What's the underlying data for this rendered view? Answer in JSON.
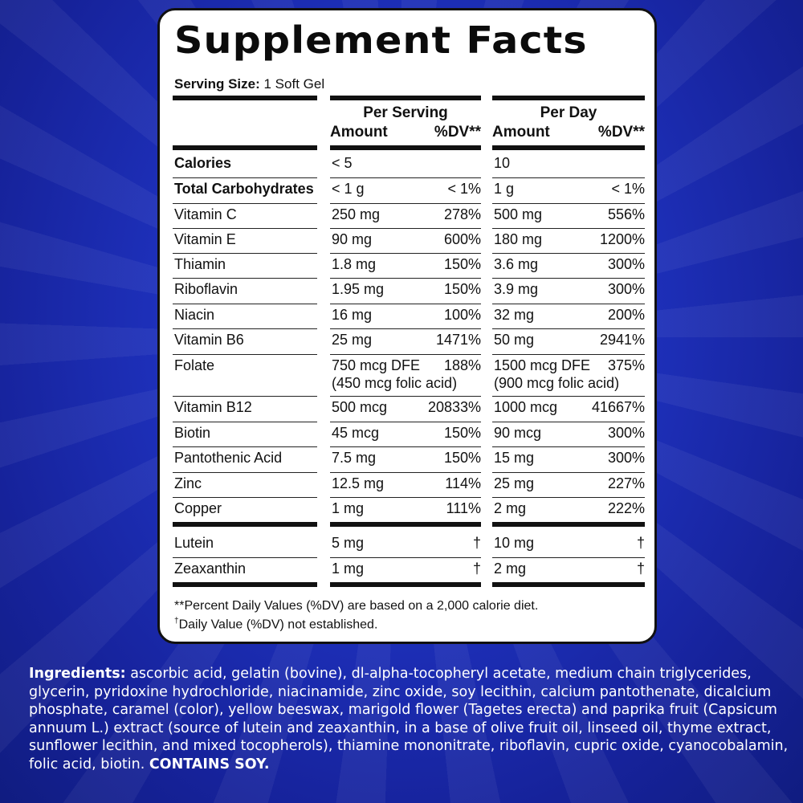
{
  "panel": {
    "title": "Supplement Facts",
    "serving_label": "Serving Size:",
    "serving_value": "1 Soft Gel",
    "per_serving_header": "Per Serving",
    "per_day_header": "Per Day",
    "amount_header": "Amount",
    "dv_header": "%DV**",
    "rows": [
      {
        "name": "Calories",
        "ps_amount": "< 5",
        "ps_dv": "",
        "pd_amount": "10",
        "pd_dv": "",
        "bold": true
      },
      {
        "name": "Total Carbohydrates",
        "ps_amount": "< 1 g",
        "ps_dv": "< 1%",
        "pd_amount": "1 g",
        "pd_dv": "< 1%",
        "bold": true
      },
      {
        "name": "Vitamin C",
        "ps_amount": "250 mg",
        "ps_dv": "278%",
        "pd_amount": "500 mg",
        "pd_dv": "556%"
      },
      {
        "name": "Vitamin E",
        "ps_amount": "90 mg",
        "ps_dv": "600%",
        "pd_amount": "180 mg",
        "pd_dv": "1200%"
      },
      {
        "name": "Thiamin",
        "ps_amount": "1.8 mg",
        "ps_dv": "150%",
        "pd_amount": "3.6 mg",
        "pd_dv": "300%"
      },
      {
        "name": "Riboflavin",
        "ps_amount": "1.95 mg",
        "ps_dv": "150%",
        "pd_amount": "3.9 mg",
        "pd_dv": "300%"
      },
      {
        "name": "Niacin",
        "ps_amount": "16 mg",
        "ps_dv": "100%",
        "pd_amount": "32 mg",
        "pd_dv": "200%"
      },
      {
        "name": "Vitamin B6",
        "ps_amount": "25 mg",
        "ps_dv": "1471%",
        "pd_amount": "50 mg",
        "pd_dv": "2941%"
      },
      {
        "name": "Folate",
        "ps_amount": "750 mcg DFE",
        "ps_amount_2": "(450 mcg folic acid)",
        "ps_dv": "188%",
        "pd_amount": "1500 mcg DFE",
        "pd_amount_2": "(900 mcg folic acid)",
        "pd_dv": "375%"
      },
      {
        "name": "Vitamin B12",
        "ps_amount": "500 mcg",
        "ps_dv": "20833%",
        "pd_amount": "1000 mcg",
        "pd_dv": "41667%"
      },
      {
        "name": "Biotin",
        "ps_amount": "45 mcg",
        "ps_dv": "150%",
        "pd_amount": "90 mcg",
        "pd_dv": "300%"
      },
      {
        "name": "Pantothenic Acid",
        "ps_amount": "7.5 mg",
        "ps_dv": "150%",
        "pd_amount": "15 mg",
        "pd_dv": "300%"
      },
      {
        "name": "Zinc",
        "ps_amount": "12.5 mg",
        "ps_dv": "114%",
        "pd_amount": "25 mg",
        "pd_dv": "227%"
      },
      {
        "name": "Copper",
        "ps_amount": "1 mg",
        "ps_dv": "111%",
        "pd_amount": "2 mg",
        "pd_dv": "222%"
      },
      {
        "name": "Lutein",
        "ps_amount": "5 mg",
        "ps_dv": "†",
        "pd_amount": "10 mg",
        "pd_dv": "†"
      },
      {
        "name": "Zeaxanthin",
        "ps_amount": "1 mg",
        "ps_dv": "†",
        "pd_amount": "2 mg",
        "pd_dv": "†"
      }
    ],
    "footnote_1": "**Percent Daily Values (%DV) are based on a 2,000 calorie diet.",
    "footnote_2_mark": "†",
    "footnote_2": "Daily Value (%DV) not established."
  },
  "ingredients": {
    "label": "Ingredients:",
    "text": " ascorbic acid, gelatin (bovine), dl-alpha-tocopheryl acetate, medium chain triglycerides, glycerin, pyridoxine hydrochloride, niacinamide, zinc oxide, soy lecithin, calcium pantothenate, dicalcium phosphate, caramel (color), yellow beeswax, marigold flower (Tagetes erecta) and paprika fruit (Capsicum annuum L.) extract (source of lutein and zeaxanthin, in a base of olive fruit oil, linseed oil, thyme extract, sunflower lecithin, and mixed tocopherols), thiamine mononitrate, riboflavin, cupric oxide, cyanocobalamin, folic acid, biotin. ",
    "warning": "CONTAINS SOY."
  }
}
